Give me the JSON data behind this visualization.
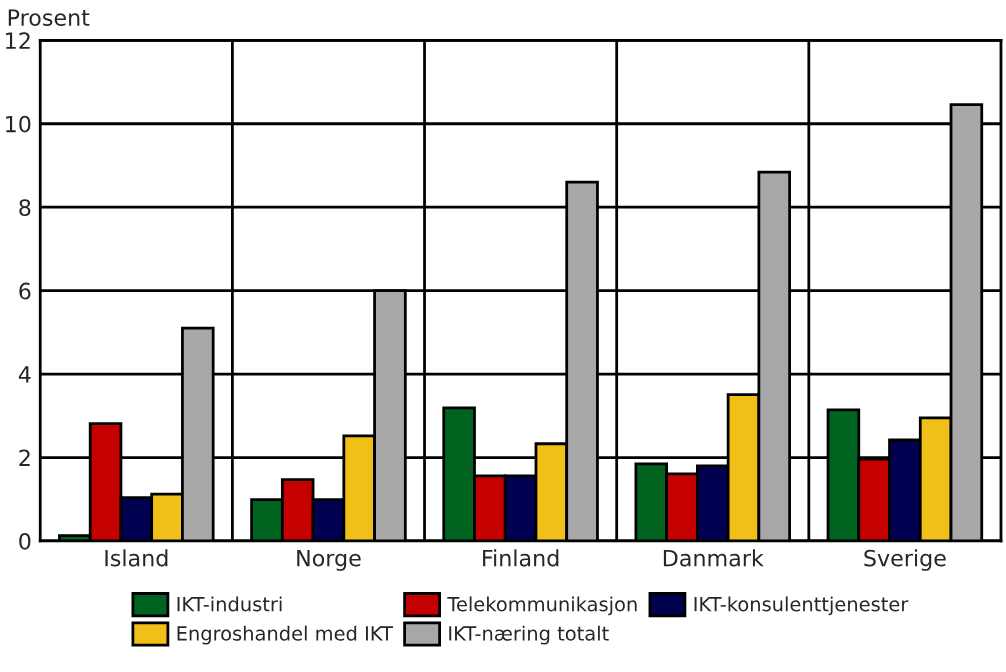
{
  "chart_data": {
    "type": "bar",
    "ylabel": "Prosent",
    "categories": [
      "Island",
      "Norge",
      "Finland",
      "Danmark",
      "Sverige"
    ],
    "series": [
      {
        "name": "IKT-industri",
        "color": "#006420",
        "values": [
          0.13,
          0.99,
          3.19,
          1.85,
          3.14
        ]
      },
      {
        "name": "Telekommunikasjon",
        "color": "#c40000",
        "values": [
          2.81,
          1.47,
          1.56,
          1.61,
          1.96
        ]
      },
      {
        "name": "IKT-konsulenttjenester",
        "color": "#000050",
        "values": [
          1.04,
          0.99,
          1.56,
          1.8,
          2.42
        ]
      },
      {
        "name": "Engroshandel med IKT",
        "color": "#f0c018",
        "values": [
          1.12,
          2.52,
          2.33,
          3.51,
          2.95
        ]
      },
      {
        "name": "IKT-næring totalt",
        "color": "#a8a8a8",
        "values": [
          5.1,
          6.0,
          8.6,
          8.84,
          10.46
        ]
      }
    ],
    "ylim": [
      0,
      12
    ],
    "yticks": [
      0,
      2,
      4,
      6,
      8,
      10,
      12
    ],
    "grid": true,
    "legend": "bottom"
  }
}
